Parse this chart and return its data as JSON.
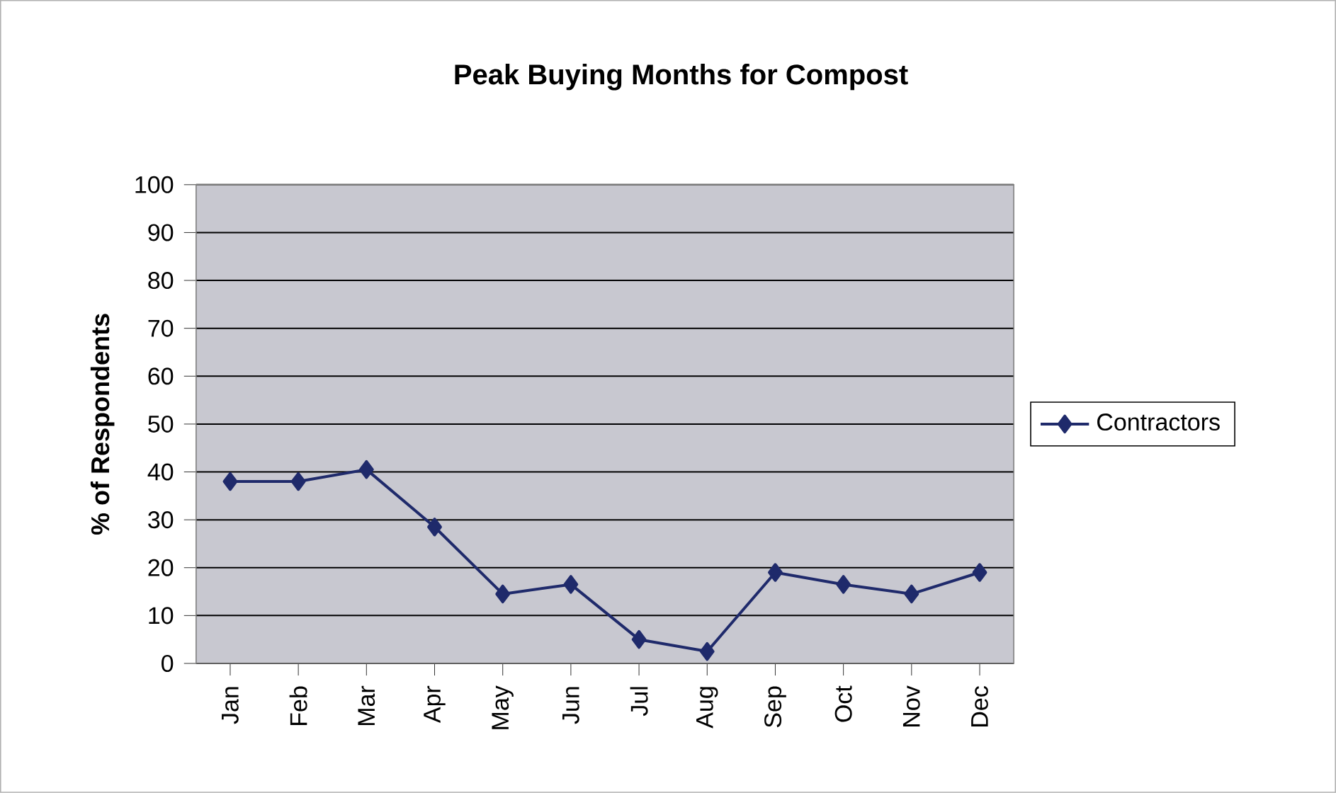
{
  "chart_data": {
    "type": "line",
    "title": "Peak Buying Months for Compost",
    "ylabel": "% of Respondents",
    "categories": [
      "Jan",
      "Feb",
      "Mar",
      "Apr",
      "May",
      "Jun",
      "Jul",
      "Aug",
      "Sep",
      "Oct",
      "Nov",
      "Dec"
    ],
    "series": [
      {
        "name": "Contractors",
        "color": "#1f2a6b",
        "values": [
          38,
          38,
          40.5,
          28.5,
          14.5,
          16.5,
          5,
          2.5,
          19,
          16.5,
          14.5,
          19
        ]
      }
    ],
    "ylim": [
      0,
      100
    ],
    "yticks": [
      0,
      10,
      20,
      30,
      40,
      50,
      60,
      70,
      80,
      90,
      100
    ],
    "grid": "y",
    "legend": "right",
    "marker": "diamond",
    "line_style": "solid"
  }
}
